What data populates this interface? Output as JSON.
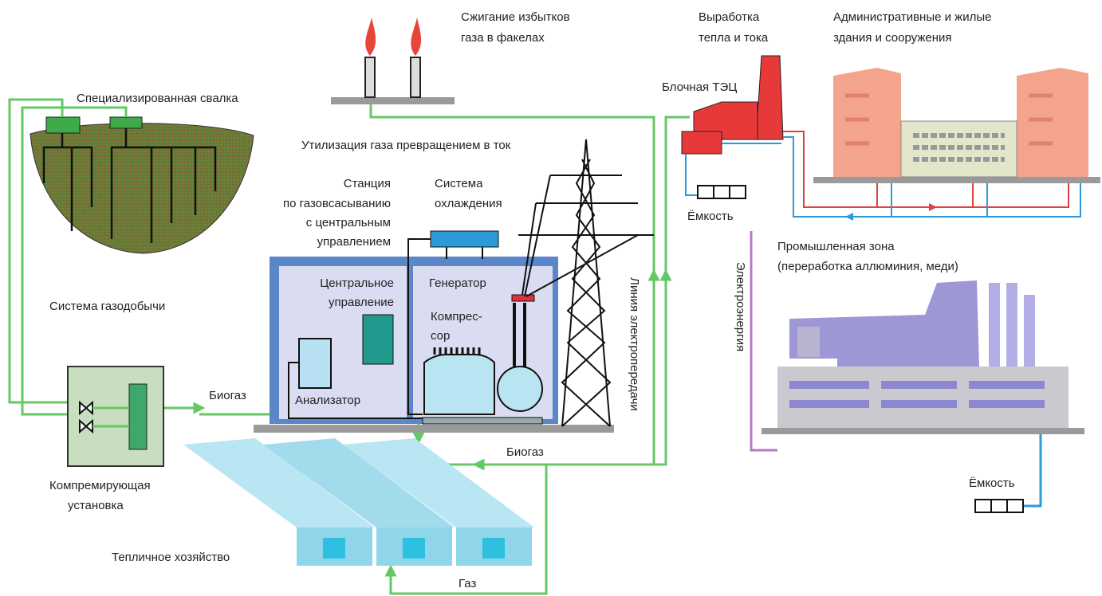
{
  "labels": {
    "flares": [
      "Сжигание избытков",
      "газа в факелах"
    ],
    "heat_power": [
      "Выработка",
      "тепла и тока"
    ],
    "buildings": [
      "Административные и жилые",
      "здания и сооружения"
    ],
    "landfill": "Специализированная свалка",
    "chp": "Блочная ТЭЦ",
    "utilization": "Утилизация газа превращением в ток",
    "station": [
      "Станция",
      "по газовсасыванию",
      "с центральным",
      "управлением"
    ],
    "cooling": [
      "Система",
      "охлаждения"
    ],
    "storage_chp": "Ёмкость",
    "industrial": [
      "Промышленная зона",
      "(переработка аллюминия, меди)"
    ],
    "central_control": [
      "Центральное",
      "управление"
    ],
    "generator": "Генератор",
    "compressor": [
      "Компрес-",
      "сор"
    ],
    "gas_extraction": "Система газодобычи",
    "power_line": "Линия электропередачи",
    "electricity": "Электроэнергия",
    "analyzer": "Анализатор",
    "biogas_left": "Биогаз",
    "biogas_bottom": "Биогаз",
    "compression_unit": [
      "Компремирующая",
      "установка"
    ],
    "storage_industrial": "Ёмкость",
    "greenhouse": "Тепличное хозяйство",
    "gas": "Газ"
  }
}
